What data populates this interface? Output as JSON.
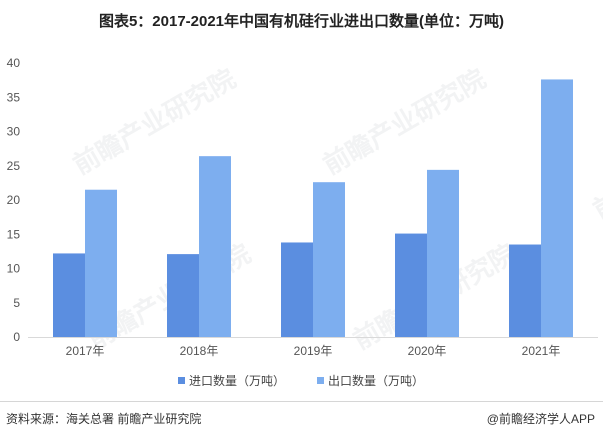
{
  "title": "图表5：2017-2021年中国有机硅行业进出口数量(单位：万吨)",
  "chart_data": {
    "type": "bar",
    "categories": [
      "2017年",
      "2018年",
      "2019年",
      "2020年",
      "2021年"
    ],
    "series": [
      {
        "name": "进口数量（万吨）",
        "values": [
          12.2,
          12.1,
          13.8,
          15.1,
          13.5
        ],
        "color": "#5b8ee0"
      },
      {
        "name": "出口数量（万吨）",
        "values": [
          21.5,
          26.4,
          22.6,
          24.4,
          37.6
        ],
        "color": "#7daeef"
      }
    ],
    "yticks": [
      0,
      5,
      10,
      15,
      20,
      25,
      30,
      35,
      40
    ],
    "ylim": [
      0,
      40
    ],
    "grid": false,
    "legend_position": "bottom"
  },
  "watermark": "前瞻产业研究院",
  "footer": {
    "source": "资料来源：海关总署 前瞻产业研究院",
    "credit": "@前瞻经济学人APP"
  }
}
